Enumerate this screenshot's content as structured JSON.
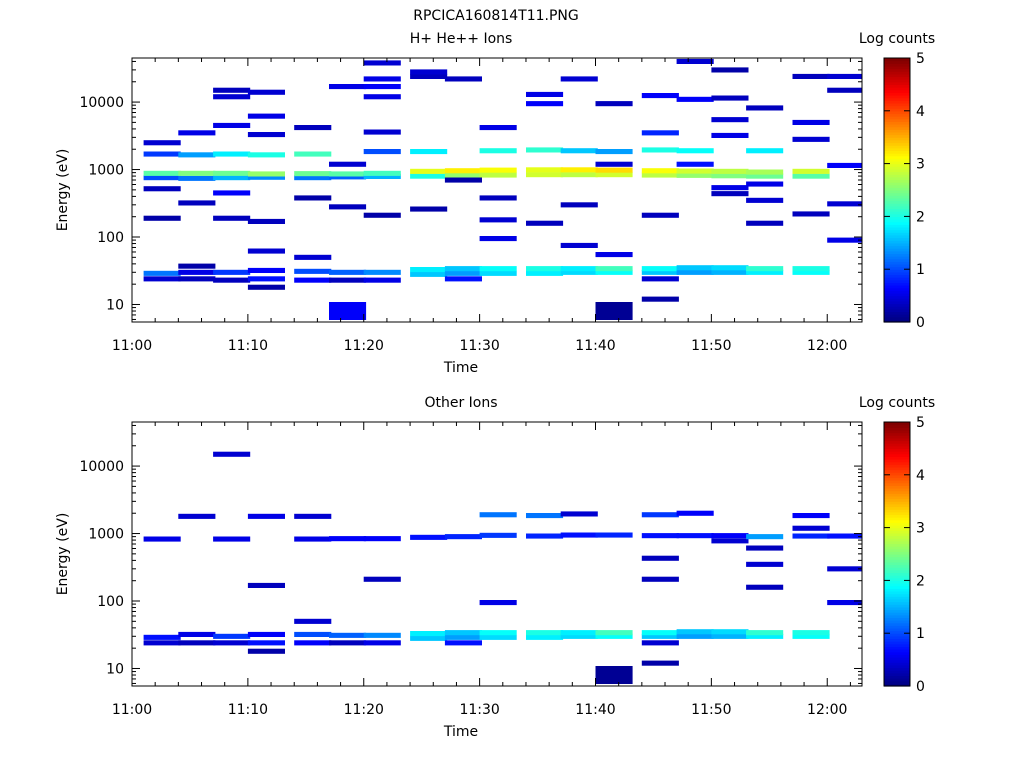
{
  "figure_title": "RPCICA160814T11.PNG",
  "chart_data": [
    {
      "type": "heatmap",
      "title": "H+ He++ Ions",
      "xlabel": "Time",
      "ylabel": "Energy (eV)",
      "x_range_min": [
        0,
        63
      ],
      "y_range_ev": [
        5.5,
        45000
      ],
      "y_scale": "log",
      "x_ticks": [
        "11:00",
        "11:10",
        "11:20",
        "11:30",
        "11:40",
        "11:50",
        "12:00"
      ],
      "y_ticks": [
        "10",
        "100",
        "1000",
        "10000"
      ],
      "colorbar": {
        "label": "Log counts",
        "range": [
          0,
          5
        ],
        "ticks": [
          "0",
          "1",
          "2",
          "3",
          "4",
          "5"
        ]
      },
      "cells": [
        [
          1,
          24,
          0.4
        ],
        [
          1,
          29,
          1.2
        ],
        [
          4,
          24,
          0.3
        ],
        [
          4,
          30,
          0.5
        ],
        [
          4,
          37,
          0.2
        ],
        [
          7,
          23,
          0.3
        ],
        [
          7,
          30,
          0.9
        ],
        [
          10,
          18,
          0.2
        ],
        [
          10,
          24,
          0.7
        ],
        [
          10,
          32,
          0.6
        ],
        [
          14,
          23,
          0.6
        ],
        [
          14,
          31,
          1.0
        ],
        [
          17,
          8,
          0.6
        ],
        [
          17,
          23,
          0.3
        ],
        [
          17,
          30,
          1.1
        ],
        [
          20,
          23,
          0.5
        ],
        [
          20,
          30,
          1.3
        ],
        [
          24,
          28,
          1.6
        ],
        [
          24,
          33,
          1.8
        ],
        [
          27,
          24,
          0.7
        ],
        [
          27,
          29,
          1.4
        ],
        [
          27,
          34,
          1.6
        ],
        [
          30,
          29,
          1.7
        ],
        [
          30,
          34,
          1.9
        ],
        [
          34,
          29,
          1.8
        ],
        [
          34,
          34,
          2.0
        ],
        [
          37,
          30,
          1.7
        ],
        [
          37,
          34,
          1.8
        ],
        [
          40,
          8,
          0.1
        ],
        [
          40,
          30,
          1.9
        ],
        [
          40,
          34,
          2.2
        ],
        [
          44,
          12,
          0.2
        ],
        [
          44,
          24,
          0.4
        ],
        [
          44,
          30,
          1.6
        ],
        [
          44,
          34,
          1.9
        ],
        [
          47,
          30,
          1.4
        ],
        [
          47,
          35,
          1.6
        ],
        [
          50,
          30,
          1.5
        ],
        [
          50,
          35,
          1.7
        ],
        [
          53,
          30,
          1.8
        ],
        [
          53,
          34,
          2.1
        ],
        [
          57,
          30,
          1.9
        ],
        [
          57,
          34,
          2.0
        ],
        [
          1,
          760,
          1.0
        ],
        [
          1,
          880,
          2.3
        ],
        [
          4,
          740,
          1.2
        ],
        [
          4,
          880,
          2.5
        ],
        [
          7,
          760,
          1.5
        ],
        [
          7,
          880,
          2.4
        ],
        [
          10,
          770,
          1.3
        ],
        [
          10,
          860,
          2.6
        ],
        [
          14,
          760,
          1.2
        ],
        [
          14,
          870,
          2.4
        ],
        [
          17,
          780,
          1.1
        ],
        [
          17,
          860,
          2.3
        ],
        [
          20,
          790,
          1.5
        ],
        [
          20,
          880,
          2.2
        ],
        [
          24,
          800,
          2.0
        ],
        [
          24,
          940,
          3.0
        ],
        [
          27,
          820,
          2.6
        ],
        [
          27,
          960,
          3.2
        ],
        [
          30,
          830,
          2.8
        ],
        [
          30,
          980,
          3.1
        ],
        [
          34,
          840,
          2.9
        ],
        [
          34,
          990,
          3.0
        ],
        [
          37,
          840,
          2.8
        ],
        [
          37,
          990,
          3.2
        ],
        [
          40,
          840,
          2.9
        ],
        [
          40,
          980,
          3.3
        ],
        [
          44,
          830,
          2.8
        ],
        [
          44,
          960,
          3.1
        ],
        [
          47,
          820,
          2.6
        ],
        [
          47,
          950,
          2.9
        ],
        [
          50,
          810,
          2.5
        ],
        [
          50,
          940,
          2.8
        ],
        [
          53,
          800,
          2.4
        ],
        [
          53,
          920,
          2.7
        ],
        [
          57,
          800,
          2.3
        ],
        [
          57,
          940,
          2.9
        ],
        [
          1,
          1700,
          0.9
        ],
        [
          4,
          1650,
          1.4
        ],
        [
          7,
          1700,
          1.8
        ],
        [
          10,
          1650,
          2.0
        ],
        [
          14,
          1700,
          2.2
        ],
        [
          20,
          1850,
          1.0
        ],
        [
          24,
          1850,
          1.8
        ],
        [
          30,
          1900,
          2.0
        ],
        [
          34,
          1950,
          2.1
        ],
        [
          37,
          1900,
          1.6
        ],
        [
          40,
          1850,
          1.4
        ],
        [
          44,
          1950,
          2.0
        ],
        [
          47,
          1900,
          1.9
        ],
        [
          53,
          1900,
          1.8
        ],
        [
          1,
          190,
          0.2
        ],
        [
          1,
          520,
          0.3
        ],
        [
          1,
          2500,
          0.4
        ],
        [
          4,
          320,
          0.3
        ],
        [
          4,
          3500,
          0.5
        ],
        [
          7,
          190,
          0.3
        ],
        [
          7,
          450,
          0.6
        ],
        [
          7,
          4500,
          0.5
        ],
        [
          7,
          12000,
          0.4
        ],
        [
          7,
          15000,
          0.3
        ],
        [
          10,
          62,
          0.4
        ],
        [
          10,
          170,
          0.3
        ],
        [
          10,
          3300,
          0.4
        ],
        [
          10,
          6200,
          0.5
        ],
        [
          10,
          14000,
          0.4
        ],
        [
          14,
          50,
          0.4
        ],
        [
          14,
          380,
          0.2
        ],
        [
          14,
          4200,
          0.3
        ],
        [
          17,
          280,
          0.3
        ],
        [
          17,
          1200,
          0.4
        ],
        [
          17,
          17000,
          0.5
        ],
        [
          20,
          210,
          0.2
        ],
        [
          20,
          3600,
          0.4
        ],
        [
          20,
          12000,
          0.5
        ],
        [
          20,
          17000,
          0.6
        ],
        [
          20,
          22000,
          0.5
        ],
        [
          20,
          38000,
          0.4
        ],
        [
          24,
          260,
          0.2
        ],
        [
          24,
          24000,
          0.3
        ],
        [
          24,
          28000,
          0.4
        ],
        [
          27,
          700,
          0.2
        ],
        [
          27,
          22000,
          0.3
        ],
        [
          30,
          95,
          0.5
        ],
        [
          30,
          180,
          0.4
        ],
        [
          30,
          380,
          0.3
        ],
        [
          30,
          4200,
          0.5
        ],
        [
          34,
          160,
          0.3
        ],
        [
          34,
          9500,
          0.6
        ],
        [
          34,
          13000,
          0.5
        ],
        [
          37,
          75,
          0.4
        ],
        [
          37,
          300,
          0.3
        ],
        [
          37,
          22000,
          0.4
        ],
        [
          40,
          55,
          0.5
        ],
        [
          40,
          1200,
          0.4
        ],
        [
          40,
          9500,
          0.3
        ],
        [
          44,
          210,
          0.3
        ],
        [
          44,
          3500,
          0.8
        ],
        [
          44,
          12500,
          0.6
        ],
        [
          47,
          1200,
          0.7
        ],
        [
          47,
          11000,
          0.6
        ],
        [
          47,
          40000,
          0.4
        ],
        [
          50,
          440,
          0.3
        ],
        [
          50,
          540,
          0.5
        ],
        [
          50,
          3200,
          0.5
        ],
        [
          50,
          5500,
          0.4
        ],
        [
          50,
          11500,
          0.3
        ],
        [
          50,
          30000,
          0.2
        ],
        [
          53,
          160,
          0.3
        ],
        [
          53,
          350,
          0.4
        ],
        [
          53,
          610,
          0.5
        ],
        [
          53,
          8200,
          0.3
        ],
        [
          57,
          220,
          0.3
        ],
        [
          57,
          2800,
          0.4
        ],
        [
          57,
          5000,
          0.5
        ],
        [
          57,
          24000,
          0.3
        ],
        [
          60,
          310,
          0.4
        ],
        [
          60,
          90,
          0.5
        ],
        [
          60,
          1150,
          0.6
        ],
        [
          60,
          15000,
          0.3
        ],
        [
          60,
          24000,
          0.4
        ]
      ]
    },
    {
      "type": "heatmap",
      "title": "Other Ions",
      "xlabel": "Time",
      "ylabel": "Energy (eV)",
      "x_range_min": [
        0,
        63
      ],
      "y_range_ev": [
        5.5,
        45000
      ],
      "y_scale": "log",
      "x_ticks": [
        "11:00",
        "11:10",
        "11:20",
        "11:30",
        "11:40",
        "11:50",
        "12:00"
      ],
      "y_ticks": [
        "10",
        "100",
        "1000",
        "10000"
      ],
      "colorbar": {
        "label": "Log counts",
        "range": [
          0,
          5
        ],
        "ticks": [
          "0",
          "1",
          "2",
          "3",
          "4",
          "5"
        ]
      },
      "cells": [
        [
          1,
          24,
          0.4
        ],
        [
          1,
          29,
          0.7
        ],
        [
          4,
          24,
          0.3
        ],
        [
          4,
          32,
          0.5
        ],
        [
          7,
          24,
          0.4
        ],
        [
          7,
          30,
          0.9
        ],
        [
          10,
          18,
          0.2
        ],
        [
          10,
          24,
          0.7
        ],
        [
          10,
          32,
          0.6
        ],
        [
          14,
          24,
          0.6
        ],
        [
          14,
          32,
          1.0
        ],
        [
          17,
          24,
          0.3
        ],
        [
          17,
          31,
          1.1
        ],
        [
          20,
          24,
          0.5
        ],
        [
          20,
          31,
          1.3
        ],
        [
          24,
          28,
          1.6
        ],
        [
          24,
          33,
          1.8
        ],
        [
          27,
          24,
          0.7
        ],
        [
          27,
          29,
          1.4
        ],
        [
          27,
          34,
          1.6
        ],
        [
          30,
          29,
          1.7
        ],
        [
          30,
          34,
          1.9
        ],
        [
          34,
          29,
          1.8
        ],
        [
          34,
          34,
          2.0
        ],
        [
          37,
          30,
          1.7
        ],
        [
          37,
          34,
          1.8
        ],
        [
          40,
          8,
          0.1
        ],
        [
          40,
          30,
          1.9
        ],
        [
          40,
          34,
          2.2
        ],
        [
          44,
          12,
          0.2
        ],
        [
          44,
          24,
          0.4
        ],
        [
          44,
          30,
          1.6
        ],
        [
          44,
          34,
          1.9
        ],
        [
          47,
          30,
          1.4
        ],
        [
          47,
          35,
          1.6
        ],
        [
          50,
          30,
          1.5
        ],
        [
          50,
          35,
          1.7
        ],
        [
          53,
          30,
          1.8
        ],
        [
          53,
          34,
          2.1
        ],
        [
          57,
          30,
          1.9
        ],
        [
          57,
          34,
          2.0
        ],
        [
          1,
          830,
          0.5
        ],
        [
          4,
          1800,
          0.4
        ],
        [
          7,
          830,
          0.5
        ],
        [
          7,
          15000,
          0.4
        ],
        [
          10,
          1800,
          0.5
        ],
        [
          10,
          170,
          0.3
        ],
        [
          14,
          830,
          0.5
        ],
        [
          14,
          1800,
          0.4
        ],
        [
          14,
          50,
          0.4
        ],
        [
          17,
          840,
          0.6
        ],
        [
          20,
          840,
          0.6
        ],
        [
          20,
          210,
          0.3
        ],
        [
          24,
          880,
          0.7
        ],
        [
          27,
          900,
          0.8
        ],
        [
          30,
          940,
          0.9
        ],
        [
          30,
          1900,
          1.2
        ],
        [
          30,
          95,
          0.5
        ],
        [
          34,
          920,
          0.8
        ],
        [
          34,
          1850,
          1.2
        ],
        [
          37,
          950,
          0.7
        ],
        [
          37,
          1950,
          0.4
        ],
        [
          40,
          950,
          0.8
        ],
        [
          44,
          930,
          0.7
        ],
        [
          44,
          1900,
          0.9
        ],
        [
          44,
          430,
          0.3
        ],
        [
          44,
          210,
          0.3
        ],
        [
          47,
          930,
          0.7
        ],
        [
          47,
          2000,
          0.6
        ],
        [
          50,
          930,
          0.6
        ],
        [
          50,
          780,
          0.4
        ],
        [
          53,
          900,
          1.4
        ],
        [
          53,
          610,
          0.3
        ],
        [
          53,
          350,
          0.4
        ],
        [
          53,
          160,
          0.3
        ],
        [
          57,
          1200,
          0.4
        ],
        [
          57,
          1850,
          0.6
        ],
        [
          57,
          920,
          0.8
        ],
        [
          60,
          920,
          0.7
        ],
        [
          60,
          300,
          0.4
        ],
        [
          60,
          95,
          0.5
        ]
      ]
    }
  ]
}
